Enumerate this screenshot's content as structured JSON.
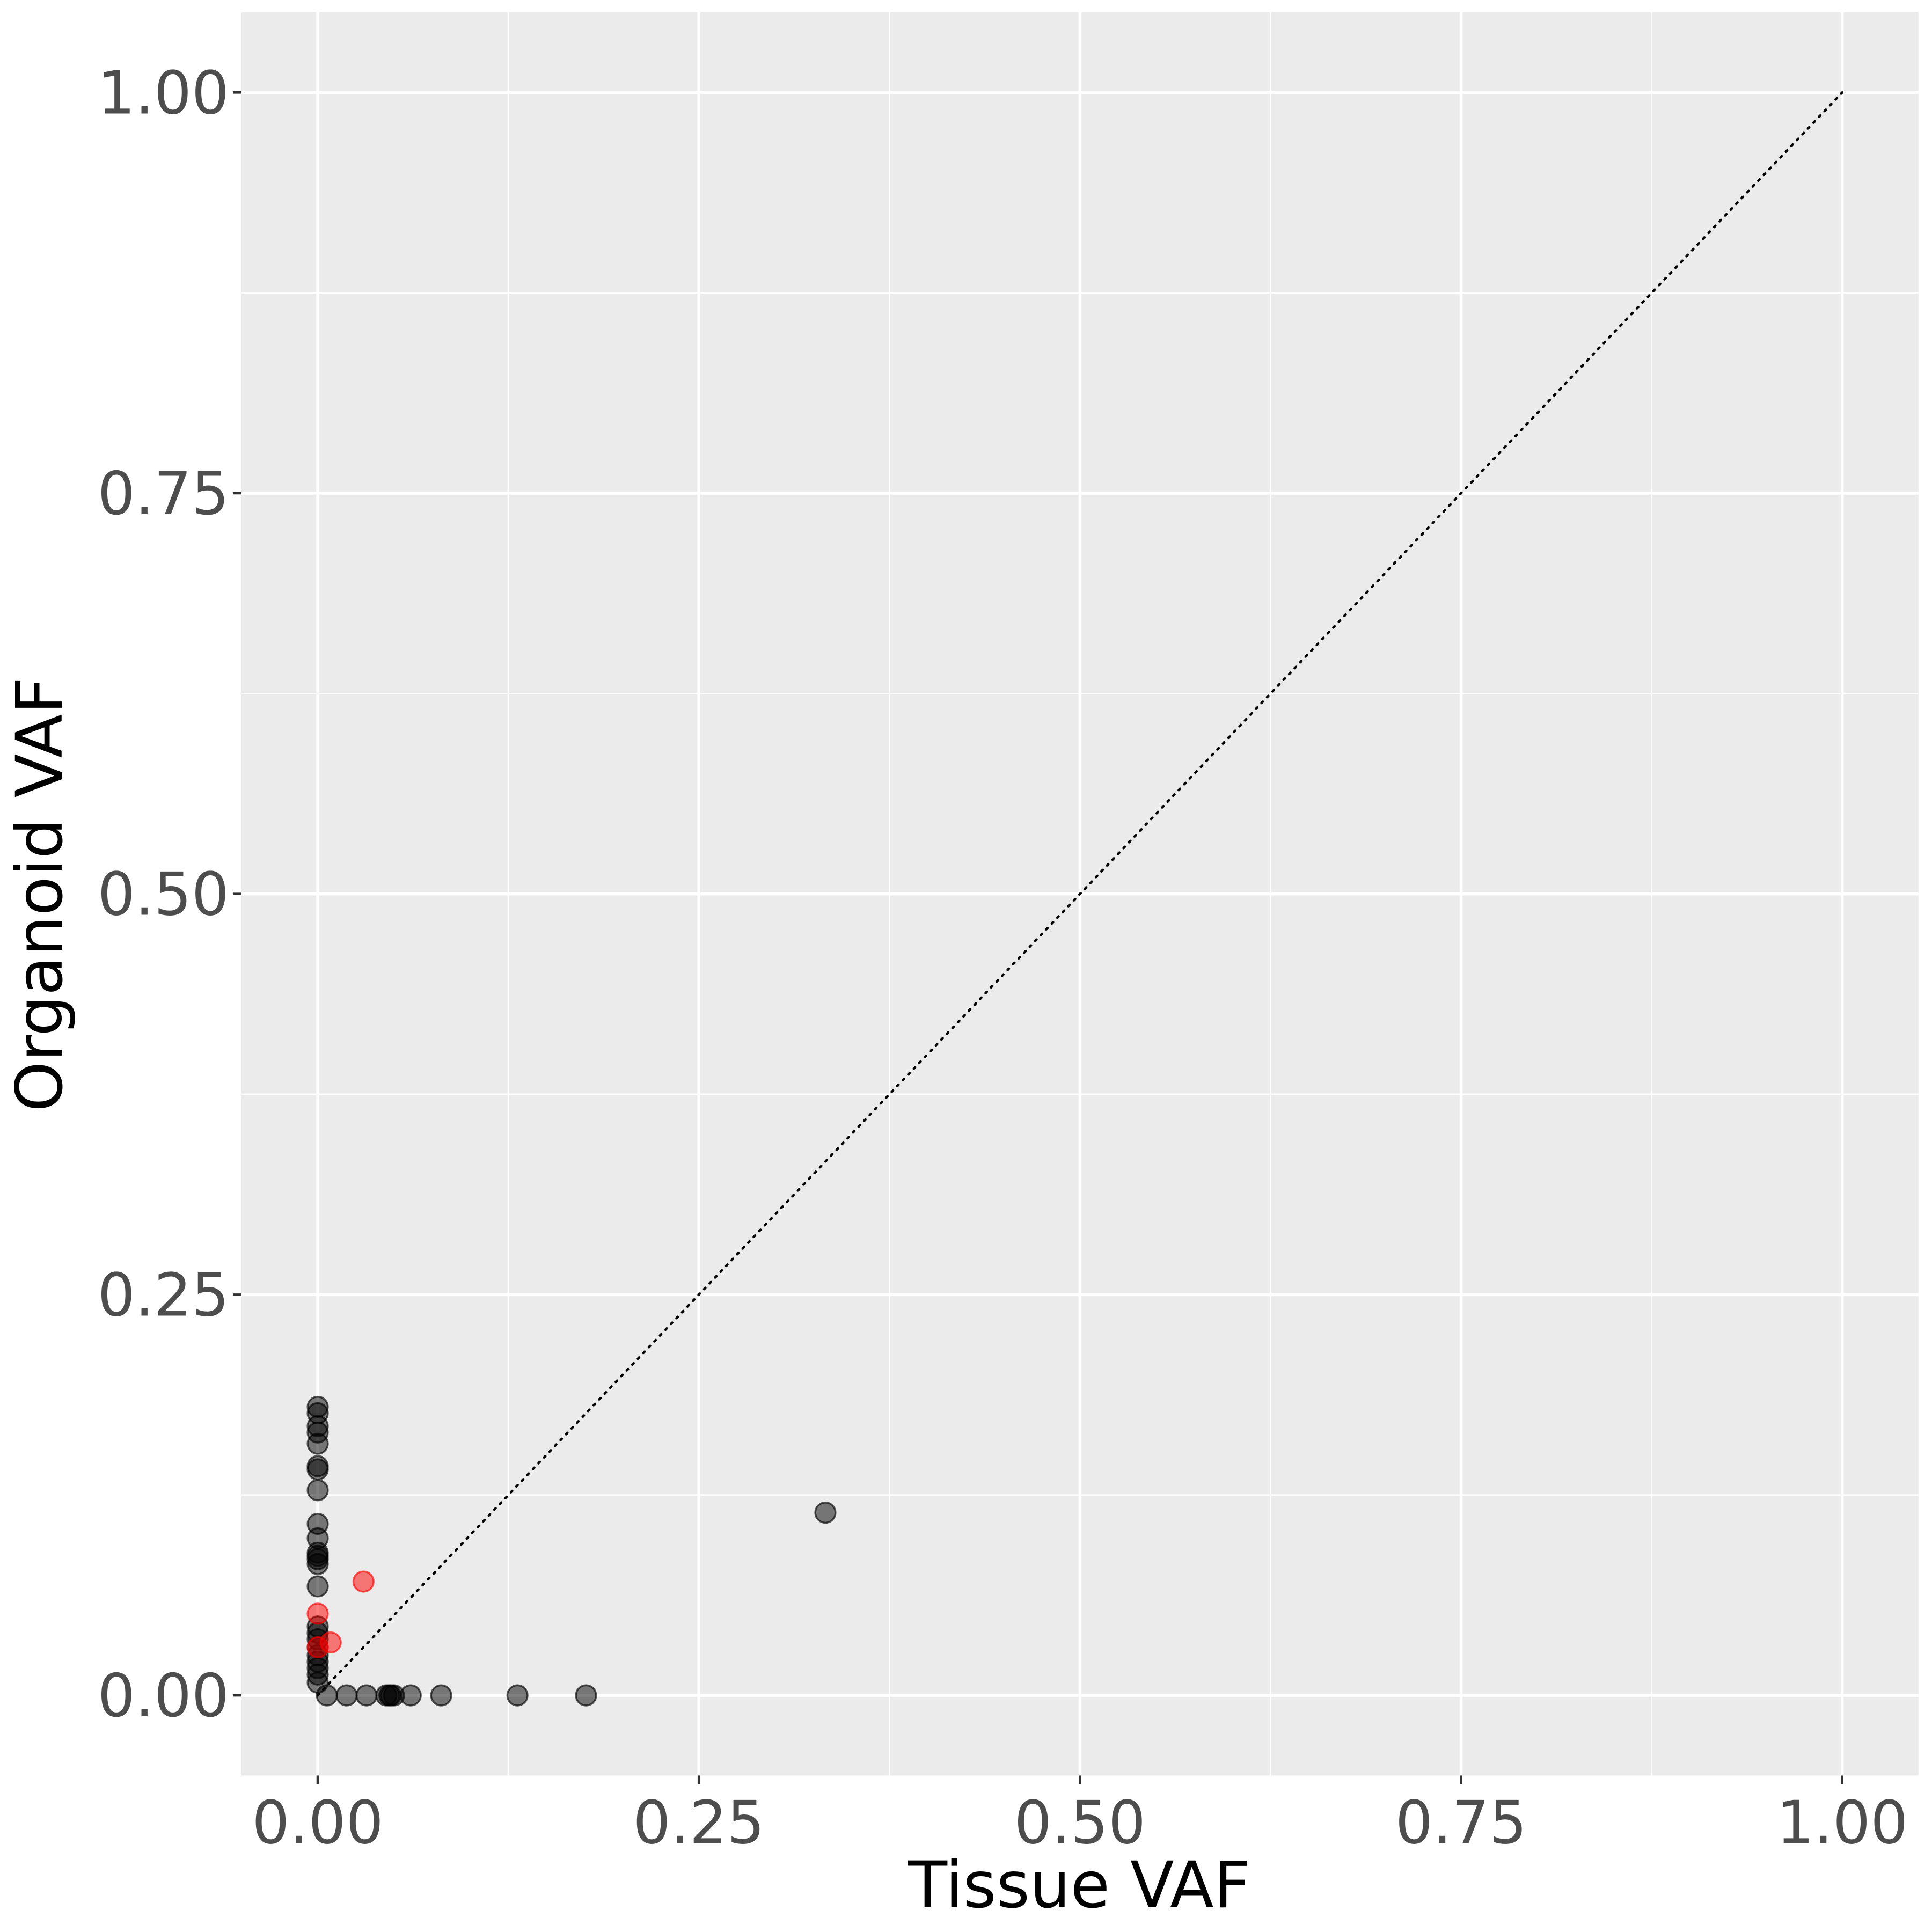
{
  "chart_data": {
    "type": "scatter",
    "title": "",
    "xlabel": "Tissue VAF",
    "ylabel": "Organoid VAF",
    "xlim": [
      -0.05,
      1.05
    ],
    "ylim": [
      -0.05,
      1.05
    ],
    "xticks": [
      "0.00",
      "0.25",
      "0.50",
      "0.75",
      "1.00"
    ],
    "yticks": [
      "0.00",
      "0.25",
      "0.50",
      "0.75",
      "1.00"
    ],
    "xtick_values": [
      0,
      0.25,
      0.5,
      0.75,
      1
    ],
    "ytick_values": [
      0,
      0.25,
      0.5,
      0.75,
      1
    ],
    "grid": true,
    "reference_line": {
      "type": "identity",
      "style": "dotted",
      "from": [
        0,
        0
      ],
      "to": [
        1,
        1
      ]
    },
    "series": [
      {
        "name": "black",
        "color": "#000000",
        "opacity": 0.5,
        "points": [
          [
            0,
            0.18
          ],
          [
            0,
            0.176
          ],
          [
            0,
            0.168
          ],
          [
            0,
            0.164
          ],
          [
            0,
            0.157
          ],
          [
            0,
            0.143
          ],
          [
            0,
            0.141
          ],
          [
            0,
            0.128
          ],
          [
            0,
            0.107
          ],
          [
            0,
            0.098
          ],
          [
            0,
            0.089
          ],
          [
            0,
            0.087
          ],
          [
            0,
            0.085
          ],
          [
            0,
            0.082
          ],
          [
            0,
            0.068
          ],
          [
            0,
            0.043
          ],
          [
            0,
            0.039
          ],
          [
            0,
            0.035
          ],
          [
            0,
            0.03
          ],
          [
            0,
            0.025
          ],
          [
            0,
            0.021
          ],
          [
            0,
            0.017
          ],
          [
            0,
            0.013
          ],
          [
            0,
            0.008
          ],
          [
            0.006,
            0
          ],
          [
            0.019,
            0
          ],
          [
            0.032,
            0
          ],
          [
            0.045,
            0
          ],
          [
            0.047,
            0
          ],
          [
            0.048,
            0
          ],
          [
            0.05,
            0
          ],
          [
            0.061,
            0
          ],
          [
            0.081,
            0
          ],
          [
            0.131,
            0
          ],
          [
            0.176,
            0
          ],
          [
            0.333,
            0.114
          ]
        ]
      },
      {
        "name": "red",
        "color": "#ff0000",
        "opacity": 0.5,
        "points": [
          [
            0,
            0.051
          ],
          [
            0,
            0.03
          ],
          [
            0.0085,
            0.033
          ],
          [
            0.03,
            0.071
          ]
        ]
      }
    ]
  }
}
